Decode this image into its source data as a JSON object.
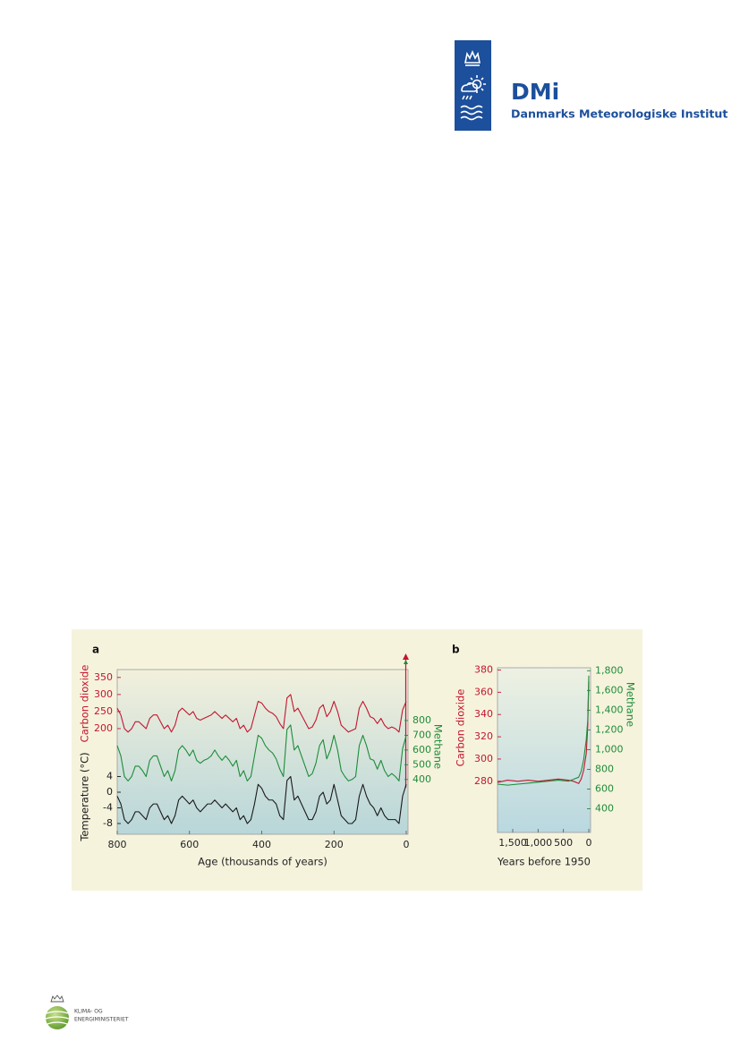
{
  "header": {
    "logo": "DMi",
    "institute": "Danmarks Meteorologiske Institut"
  },
  "chart_data": [
    {
      "type": "line",
      "panel": "a",
      "xlabel": "Age (thousands of years)",
      "xlim": [
        800,
        0
      ],
      "xticks": [
        800,
        600,
        400,
        200,
        0
      ],
      "x": [
        800,
        790,
        780,
        770,
        760,
        750,
        740,
        730,
        720,
        710,
        700,
        690,
        680,
        670,
        660,
        650,
        640,
        630,
        620,
        610,
        600,
        590,
        580,
        570,
        560,
        550,
        540,
        530,
        520,
        510,
        500,
        490,
        480,
        470,
        460,
        450,
        440,
        430,
        420,
        410,
        400,
        390,
        380,
        370,
        360,
        350,
        340,
        330,
        320,
        310,
        300,
        290,
        280,
        270,
        260,
        250,
        240,
        230,
        220,
        210,
        200,
        190,
        180,
        170,
        160,
        150,
        140,
        130,
        120,
        110,
        100,
        90,
        80,
        70,
        60,
        50,
        40,
        30,
        20,
        10,
        0
      ],
      "series": [
        {
          "name": "Carbon dioxide",
          "color": "#c3162f",
          "side": "left",
          "ylim": [
            180,
            360
          ],
          "yticks": [
            200,
            250,
            300,
            350
          ],
          "values": [
            260,
            240,
            200,
            190,
            200,
            220,
            220,
            210,
            200,
            230,
            240,
            240,
            220,
            200,
            210,
            190,
            210,
            250,
            260,
            250,
            240,
            250,
            230,
            225,
            230,
            235,
            240,
            250,
            240,
            230,
            240,
            230,
            220,
            230,
            200,
            210,
            190,
            200,
            240,
            280,
            275,
            260,
            250,
            245,
            235,
            215,
            200,
            290,
            300,
            250,
            260,
            240,
            220,
            200,
            205,
            225,
            260,
            270,
            235,
            250,
            280,
            250,
            210,
            200,
            190,
            195,
            200,
            260,
            280,
            260,
            235,
            230,
            215,
            230,
            210,
            200,
            205,
            200,
            190,
            255,
            280
          ]
        },
        {
          "name": "Methane",
          "color": "#1e8c3a",
          "side": "right",
          "ylim": [
            350,
            850
          ],
          "yticks": [
            400,
            500,
            600,
            700,
            800
          ],
          "values": [
            630,
            560,
            420,
            390,
            420,
            490,
            490,
            460,
            420,
            530,
            560,
            560,
            490,
            420,
            460,
            390,
            460,
            600,
            630,
            600,
            560,
            600,
            530,
            510,
            530,
            540,
            560,
            600,
            560,
            530,
            560,
            530,
            490,
            530,
            420,
            460,
            390,
            420,
            560,
            700,
            680,
            630,
            600,
            580,
            540,
            470,
            420,
            740,
            770,
            600,
            630,
            560,
            490,
            420,
            440,
            510,
            630,
            670,
            540,
            600,
            700,
            600,
            460,
            420,
            390,
            400,
            420,
            630,
            700,
            630,
            540,
            530,
            470,
            530,
            460,
            420,
            440,
            420,
            390,
            610,
            700
          ]
        },
        {
          "name": "Temperature (°C)",
          "color": "#1a1a1a",
          "side": "left",
          "ylim": [
            -10,
            6
          ],
          "yticks": [
            -8,
            -4,
            0,
            4
          ],
          "values": [
            -1,
            -3,
            -7,
            -8,
            -7,
            -5,
            -5,
            -6,
            -7,
            -4,
            -3,
            -3,
            -5,
            -7,
            -6,
            -8,
            -6,
            -2,
            -1,
            -2,
            -3,
            -2,
            -4,
            -5,
            -4,
            -3,
            -3,
            -2,
            -3,
            -4,
            -3,
            -4,
            -5,
            -4,
            -7,
            -6,
            -8,
            -7,
            -3,
            2,
            1,
            -1,
            -2,
            -2,
            -3,
            -6,
            -7,
            3,
            4,
            -2,
            -1,
            -3,
            -5,
            -7,
            -7,
            -5,
            -1,
            0,
            -3,
            -2,
            2,
            -2,
            -6,
            -7,
            -8,
            -8,
            -7,
            -1,
            2,
            -1,
            -3,
            -4,
            -6,
            -4,
            -6,
            -7,
            -7,
            -7,
            -8,
            -1,
            2
          ]
        }
      ]
    },
    {
      "type": "line",
      "panel": "b",
      "xlabel": "Years before 1950",
      "xlim": [
        1800,
        0
      ],
      "xticks": [
        {
          "value": 1500,
          "label": "1,500"
        },
        {
          "value": 1000,
          "label": "1,000"
        },
        500,
        0
      ],
      "x": [
        1800,
        1600,
        1400,
        1200,
        1000,
        800,
        600,
        400,
        300,
        200,
        150,
        100,
        50,
        20,
        0
      ],
      "series": [
        {
          "name": "Carbon dioxide",
          "color": "#c3162f",
          "side": "left",
          "ylim": [
            234,
            382
          ],
          "yticks": [
            280,
            300,
            320,
            340,
            360,
            380
          ],
          "values": [
            279,
            281,
            280,
            281,
            280,
            281,
            282,
            281,
            280,
            278,
            282,
            290,
            305,
            330,
            370
          ]
        },
        {
          "name": "Methane",
          "color": "#1e8c3a",
          "side": "right",
          "ylim": [
            160,
            1830
          ],
          "yticks": [
            400,
            600,
            800,
            {
              "value": 1000,
              "label": "1,000"
            },
            {
              "value": 1200,
              "label": "1,200"
            },
            {
              "value": 1400,
              "label": "1,400"
            },
            {
              "value": 1600,
              "label": "1,600"
            },
            {
              "value": 1800,
              "label": "1,800"
            }
          ],
          "values": [
            650,
            640,
            650,
            660,
            670,
            680,
            690,
            680,
            700,
            720,
            780,
            900,
            1100,
            1300,
            1750
          ]
        }
      ]
    }
  ],
  "footer": {
    "ministry": [
      "KLIMA- OG",
      "ENERGIMINISTERIET"
    ]
  }
}
